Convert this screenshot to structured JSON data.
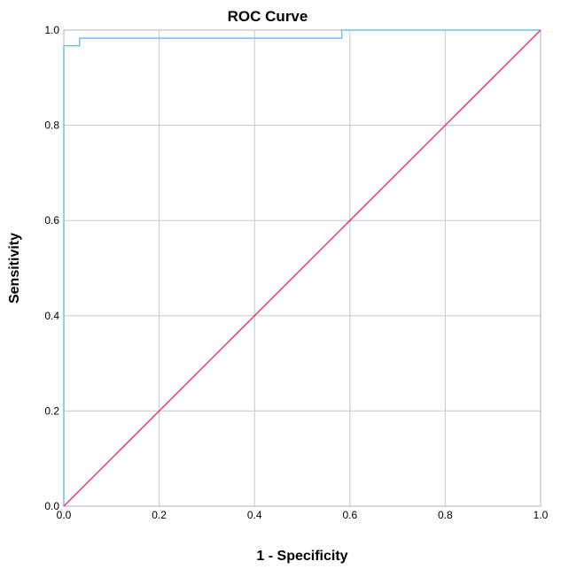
{
  "chart_data": {
    "type": "line",
    "title": "ROC Curve",
    "xlabel": "1 - Specificity",
    "ylabel": "Sensitivity",
    "xlim": [
      0.0,
      1.0
    ],
    "ylim": [
      0.0,
      1.0
    ],
    "x_ticks": [
      "0.0",
      "0.2",
      "0.4",
      "0.6",
      "0.8",
      "1.0"
    ],
    "y_ticks": [
      "0.0",
      "0.2",
      "0.4",
      "0.6",
      "0.8",
      "1.0"
    ],
    "grid": true,
    "series": [
      {
        "color": "#6ec1ee",
        "step": true,
        "points": [
          [
            0.0,
            0.0
          ],
          [
            0.0,
            0.967
          ],
          [
            0.033,
            0.967
          ],
          [
            0.033,
            0.983
          ],
          [
            0.583,
            0.983
          ],
          [
            0.583,
            1.0
          ],
          [
            1.0,
            1.0
          ]
        ]
      },
      {
        "color": "#e6358c",
        "step": false,
        "points": [
          [
            0.0,
            0.0
          ],
          [
            1.0,
            1.0
          ]
        ]
      }
    ]
  }
}
